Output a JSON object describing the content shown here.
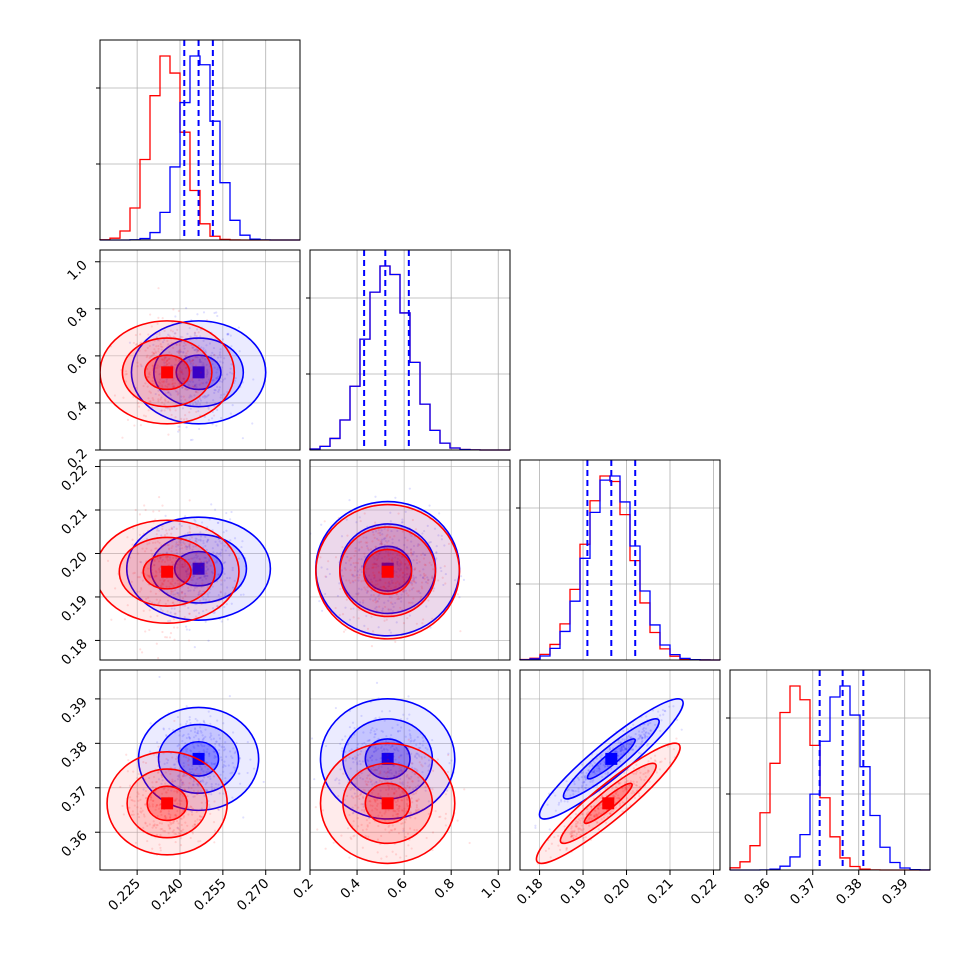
{
  "chart_data": {
    "type": "scatter",
    "colors": {
      "blue": "#0000ff",
      "red": "#ff0000",
      "grid": "#b0b0b0",
      "frame": "#000000"
    },
    "series": [
      {
        "color": "#0000ff",
        "means": [
          0.2465,
          0.53,
          0.1965,
          0.3765
        ],
        "sigmas": [
          0.006,
          0.095,
          0.0055,
          0.0045
        ],
        "quantiles": [
          [
            0.2415,
            0.2465,
            0.2515
          ],
          [
            0.43,
            0.52,
            0.62
          ],
          [
            0.191,
            0.1965,
            0.202
          ],
          [
            0.3715,
            0.3765,
            0.381
          ]
        ]
      },
      {
        "color": "#ff0000",
        "means": [
          0.2355,
          0.53,
          0.1958,
          0.3665
        ],
        "sigmas": [
          0.006,
          0.095,
          0.0055,
          0.0045
        ]
      }
    ],
    "axes": [
      {
        "xlim": [
          0.212,
          0.282
        ],
        "ylim": [
          0.198,
          1.03
        ],
        "ticks": [
          0.225,
          0.24,
          0.255,
          0.27
        ],
        "tick_labels": [
          "0.225",
          "0.240",
          "0.255",
          "0.270"
        ]
      },
      {
        "xlim": [
          0.2,
          1.05
        ],
        "ylim": [
          0.2,
          1.05
        ],
        "ticks": [
          0.2,
          0.4,
          0.6,
          0.8,
          1.0
        ],
        "tick_labels": [
          "0.2",
          "0.4",
          "0.6",
          "0.8",
          "1.0"
        ]
      },
      {
        "xlim": [
          0.1755,
          0.2215
        ],
        "ylim": [
          0.1755,
          0.2215
        ],
        "ticks": [
          0.18,
          0.19,
          0.2,
          0.21,
          0.22
        ],
        "tick_labels": [
          "0.18",
          "0.19",
          "0.20",
          "0.21",
          "0.22"
        ]
      },
      {
        "xlim": [
          0.352,
          0.3955
        ],
        "ylim": [
          0.3515,
          0.3965
        ],
        "ticks": [
          0.36,
          0.37,
          0.38,
          0.39
        ],
        "tick_labels": [
          "0.36",
          "0.37",
          "0.38",
          "0.39"
        ]
      }
    ],
    "grid": true
  }
}
